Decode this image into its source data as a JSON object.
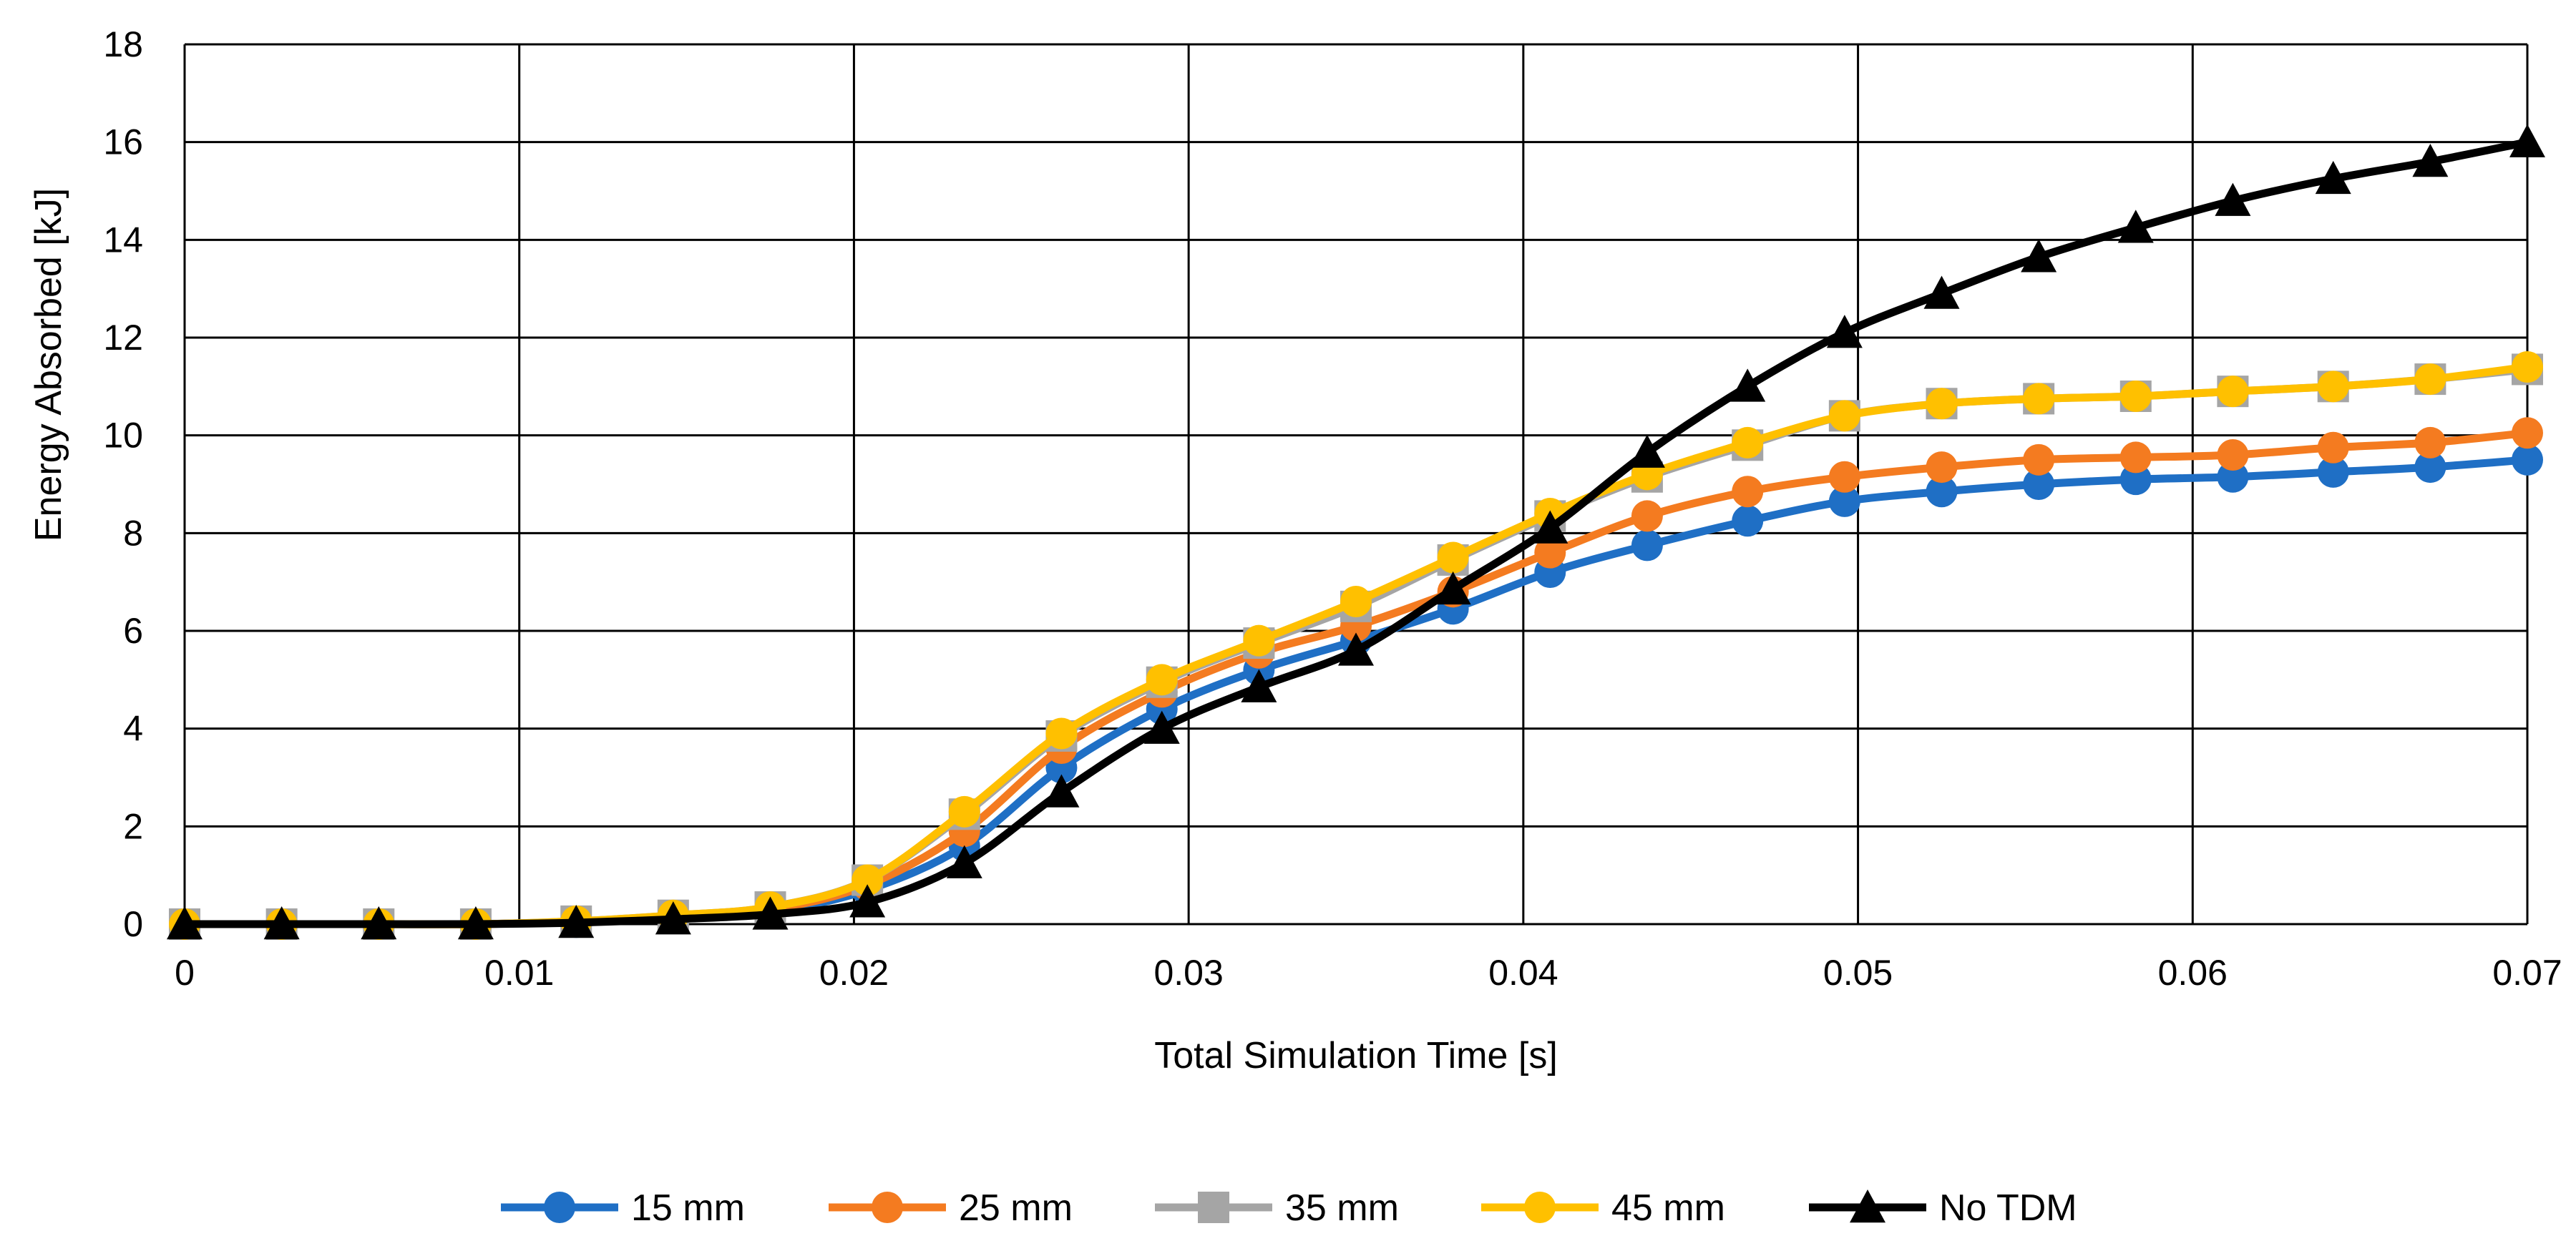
{
  "chart_data": {
    "type": "line",
    "title": "",
    "xlabel": "Total Simulation Time [s]",
    "ylabel": "Energy Absorbed [kJ]",
    "xlim": [
      0,
      0.07
    ],
    "ylim": [
      0,
      18
    ],
    "xticks": [
      0,
      0.01,
      0.02,
      0.03,
      0.04,
      0.05,
      0.06,
      0.07
    ],
    "xtick_labels": [
      "0",
      "0.01",
      "0.02",
      "0.03",
      "0.04",
      "0.05",
      "0.06",
      "0.07"
    ],
    "yticks": [
      0,
      2,
      4,
      6,
      8,
      10,
      12,
      14,
      16,
      18
    ],
    "ytick_labels": [
      "0",
      "2",
      "4",
      "6",
      "8",
      "10",
      "12",
      "14",
      "16",
      "18"
    ],
    "grid": true,
    "legend_position": "bottom",
    "x": [
      0,
      0.0029,
      0.0058,
      0.0087,
      0.0117,
      0.0146,
      0.0175,
      0.0204,
      0.0233,
      0.0262,
      0.0292,
      0.0321,
      0.035,
      0.0379,
      0.0408,
      0.0437,
      0.0467,
      0.0496,
      0.0525,
      0.0554,
      0.0583,
      0.0612,
      0.0642,
      0.0671,
      0.07
    ],
    "series": [
      {
        "name": "15 mm",
        "color": "#1F6FC5",
        "marker": "circle",
        "values": [
          0,
          0,
          0,
          0,
          0.04,
          0.12,
          0.25,
          0.7,
          1.6,
          3.2,
          4.4,
          5.2,
          5.8,
          6.45,
          7.2,
          7.75,
          8.25,
          8.65,
          8.85,
          9.0,
          9.1,
          9.15,
          9.25,
          9.35,
          9.5
        ]
      },
      {
        "name": "25 mm",
        "color": "#F47B20",
        "marker": "circle",
        "values": [
          0,
          0,
          0,
          0,
          0.05,
          0.15,
          0.3,
          0.8,
          1.9,
          3.6,
          4.75,
          5.55,
          6.1,
          6.8,
          7.6,
          8.35,
          8.85,
          9.15,
          9.35,
          9.5,
          9.55,
          9.6,
          9.75,
          9.85,
          10.05
        ]
      },
      {
        "name": "35 mm",
        "color": "#A5A5A5",
        "marker": "square",
        "values": [
          0,
          0,
          0,
          0,
          0.06,
          0.18,
          0.35,
          0.9,
          2.25,
          3.85,
          4.95,
          5.75,
          6.5,
          7.45,
          8.35,
          9.15,
          9.8,
          10.4,
          10.65,
          10.75,
          10.8,
          10.9,
          11.0,
          11.15,
          11.35
        ]
      },
      {
        "name": "45 mm",
        "color": "#FFC000",
        "marker": "circle",
        "values": [
          0,
          0,
          0,
          0,
          0.06,
          0.18,
          0.35,
          0.9,
          2.3,
          3.9,
          5.0,
          5.8,
          6.6,
          7.5,
          8.4,
          9.2,
          9.85,
          10.4,
          10.65,
          10.75,
          10.8,
          10.9,
          11.0,
          11.15,
          11.4
        ]
      },
      {
        "name": "No TDM",
        "color": "#000000",
        "marker": "triangle",
        "values": [
          0,
          0,
          0,
          0,
          0.03,
          0.1,
          0.2,
          0.45,
          1.25,
          2.7,
          4.0,
          4.85,
          5.6,
          6.85,
          8.1,
          9.65,
          11.0,
          12.1,
          12.9,
          13.65,
          14.25,
          14.8,
          15.25,
          15.6,
          16.0
        ]
      }
    ]
  }
}
